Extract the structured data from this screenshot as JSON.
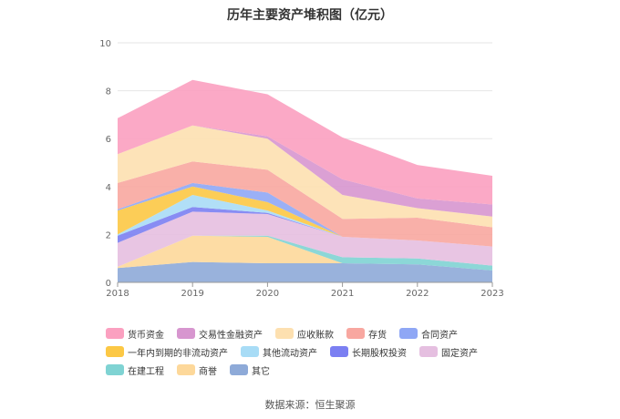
{
  "chart_data": {
    "type": "area",
    "stacked": true,
    "title": "历年主要资产堆积图（亿元）",
    "xlabel": "",
    "ylabel": "",
    "categories": [
      "2018",
      "2019",
      "2020",
      "2021",
      "2022",
      "2023"
    ],
    "ylim": [
      0,
      10
    ],
    "yticks": [
      "0",
      "2",
      "4",
      "6",
      "8",
      "10"
    ],
    "grid": true,
    "legend_position": "bottom",
    "series": [
      {
        "name": "其它",
        "color": "#8eaad8",
        "values": [
          0.6,
          0.85,
          0.8,
          0.8,
          0.75,
          0.5
        ]
      },
      {
        "name": "商誉",
        "color": "#fdd89a",
        "values": [
          0.05,
          1.1,
          1.1,
          0.0,
          0.0,
          0.0
        ]
      },
      {
        "name": "在建工程",
        "color": "#7fd3d3",
        "values": [
          0.0,
          0.0,
          0.05,
          0.25,
          0.25,
          0.2
        ]
      },
      {
        "name": "固定资产",
        "color": "#e5bfe0",
        "values": [
          1.0,
          1.0,
          0.9,
          0.85,
          0.75,
          0.8
        ]
      },
      {
        "name": "长期股权投资",
        "color": "#7b7ff2",
        "values": [
          0.3,
          0.2,
          0.05,
          0.0,
          0.0,
          0.0
        ]
      },
      {
        "name": "其他流动资产",
        "color": "#a8dcf6",
        "values": [
          0.05,
          0.5,
          0.1,
          0.0,
          0.0,
          0.0
        ]
      },
      {
        "name": "一年内到期的非流动资产",
        "color": "#fcc845",
        "values": [
          1.0,
          0.35,
          0.35,
          0.0,
          0.0,
          0.0
        ]
      },
      {
        "name": "合同资产",
        "color": "#8fa7f5",
        "values": [
          0.05,
          0.15,
          0.4,
          0.0,
          0.0,
          0.0
        ]
      },
      {
        "name": "存货",
        "color": "#f8a7a0",
        "values": [
          1.1,
          0.9,
          0.95,
          0.75,
          0.95,
          0.8
        ]
      },
      {
        "name": "应收账款",
        "color": "#fde0b0",
        "values": [
          1.2,
          1.5,
          1.3,
          1.0,
          0.4,
          0.45
        ]
      },
      {
        "name": "交易性金融资产",
        "color": "#d796cf",
        "values": [
          0.0,
          0.0,
          0.1,
          0.65,
          0.4,
          0.5
        ]
      },
      {
        "name": "货币资金",
        "color": "#fba0c0",
        "values": [
          1.5,
          1.9,
          1.75,
          1.75,
          1.4,
          1.2
        ]
      }
    ],
    "legend_order": [
      "货币资金",
      "交易性金融资产",
      "应收账款",
      "存货",
      "合同资产",
      "一年内到期的非流动资产",
      "其他流动资产",
      "长期股权投资",
      "固定资产",
      "在建工程",
      "商誉",
      "其它"
    ]
  },
  "source": "数据来源：恒生聚源"
}
